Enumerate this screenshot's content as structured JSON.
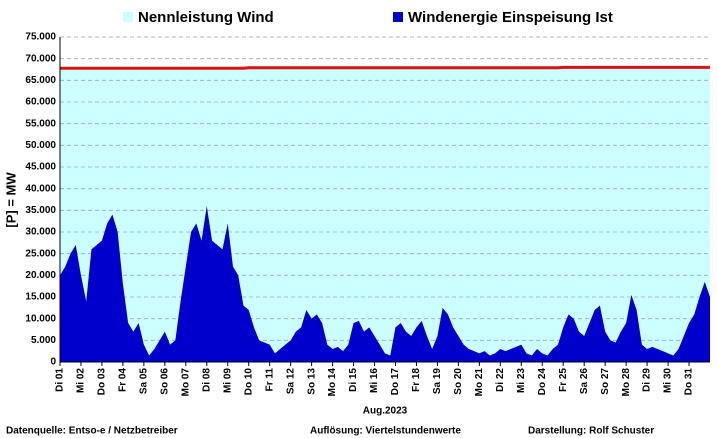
{
  "chart_data": {
    "type": "area",
    "x_label": "Aug.2023",
    "y_label": "[P] = MW",
    "footer": [
      "Datenquelle:  Entso-e  / Netzbetreiber",
      "Auflösung: Viertelstundenwerte",
      "Darstellung:  Rolf Schuster"
    ],
    "categories": [
      "Di 01",
      null,
      null,
      null,
      "Mi 02",
      null,
      null,
      null,
      "Do 03",
      null,
      null,
      null,
      "Fr 04",
      null,
      null,
      null,
      "Sa 05",
      null,
      null,
      null,
      "So 06",
      null,
      null,
      null,
      "Mo 07",
      null,
      null,
      null,
      "Di 08",
      null,
      null,
      null,
      "Mi 09",
      null,
      null,
      null,
      "Do 10",
      null,
      null,
      null,
      "Fr 11",
      null,
      null,
      null,
      "Sa 12",
      null,
      null,
      null,
      "So 13",
      null,
      null,
      null,
      "Mo 14",
      null,
      null,
      null,
      "Di 15",
      null,
      null,
      null,
      "Mi 16",
      null,
      null,
      null,
      "Do 17",
      null,
      null,
      null,
      "Fr 18",
      null,
      null,
      null,
      "Sa 19",
      null,
      null,
      null,
      "So 20",
      null,
      null,
      null,
      "Mo 21",
      null,
      null,
      null,
      "Di 22",
      null,
      null,
      null,
      "Mi 23",
      null,
      null,
      null,
      "Do 24",
      null,
      null,
      null,
      "Fr 25",
      null,
      null,
      null,
      "Sa 26",
      null,
      null,
      null,
      "So 27",
      null,
      null,
      null,
      "Mo 28",
      null,
      null,
      null,
      "Di 29",
      null,
      null,
      null,
      "Mi 30",
      null,
      null,
      null,
      "Do 31",
      null,
      null,
      null,
      null
    ],
    "series": [
      {
        "name": "Nennleistung Wind",
        "color": "#ccffff",
        "line_color": "#dd1111",
        "values": [
          67800,
          67800,
          67800,
          67800,
          67800,
          67800,
          67800,
          67800,
          67800,
          67800,
          67800,
          67800,
          67800,
          67800,
          67800,
          67800,
          67800,
          67800,
          67800,
          67800,
          67800,
          67800,
          67800,
          67800,
          67800,
          67800,
          67800,
          67800,
          67800,
          67800,
          67800,
          67800,
          67800,
          67800,
          67800,
          67800,
          67900,
          67900,
          67900,
          67900,
          67900,
          67900,
          67900,
          67900,
          67900,
          67900,
          67900,
          67900,
          67900,
          67900,
          67900,
          67900,
          67900,
          67900,
          67900,
          67900,
          67900,
          67900,
          67900,
          67900,
          67900,
          67900,
          67900,
          67900,
          67900,
          67900,
          67900,
          67900,
          67900,
          67900,
          67900,
          67900,
          67900,
          67900,
          67900,
          67900,
          67900,
          67900,
          67900,
          67900,
          67900,
          67900,
          67900,
          67900,
          67900,
          67900,
          67900,
          67900,
          67900,
          67900,
          67900,
          67900,
          67900,
          67900,
          67900,
          67900,
          68000,
          68000,
          68000,
          68000,
          68000,
          68000,
          68000,
          68000,
          68000,
          68000,
          68000,
          68000,
          68000,
          68000,
          68000,
          68000,
          68000,
          68000,
          68000,
          68000,
          68000,
          68000,
          68000,
          68000,
          68000,
          68000,
          68000,
          68000,
          68000
        ]
      },
      {
        "name": "Windenergie Einspeisung Ist",
        "color": "#0000cc",
        "values": [
          20000,
          22000,
          25000,
          27000,
          20000,
          14000,
          26000,
          27000,
          28000,
          32000,
          34000,
          30000,
          18000,
          9000,
          7000,
          9000,
          4000,
          1500,
          3000,
          5000,
          7000,
          4000,
          5000,
          14000,
          22000,
          30000,
          32000,
          28000,
          36000,
          28000,
          27000,
          26000,
          32000,
          22000,
          20000,
          13000,
          12000,
          8000,
          5000,
          4500,
          4000,
          2000,
          3000,
          4000,
          5000,
          7000,
          8000,
          12000,
          10000,
          11000,
          9000,
          4000,
          3000,
          3500,
          2500,
          4000,
          9000,
          9500,
          7000,
          8000,
          6000,
          4000,
          2000,
          1500,
          8000,
          9000,
          7000,
          6000,
          8000,
          9500,
          6000,
          3000,
          6000,
          12500,
          11000,
          8000,
          6000,
          4000,
          3000,
          2500,
          2000,
          2500,
          1500,
          2000,
          3000,
          2500,
          3000,
          3500,
          4000,
          2000,
          1500,
          3000,
          2000,
          1500,
          3000,
          4000,
          8000,
          11000,
          10000,
          7000,
          6000,
          9000,
          12000,
          13000,
          7000,
          5000,
          4500,
          7000,
          9000,
          15500,
          12000,
          4000,
          3000,
          3500,
          3000,
          2500,
          2000,
          1500,
          3000,
          6000,
          9000,
          11000,
          15000,
          18500,
          15000
        ]
      }
    ],
    "ylim": [
      0,
      75000
    ],
    "yticks": [
      {
        "value": 0,
        "label": "0"
      },
      {
        "value": 5000,
        "label": "5.000"
      },
      {
        "value": 10000,
        "label": "10.000"
      },
      {
        "value": 15000,
        "label": "15.000"
      },
      {
        "value": 20000,
        "label": "20.000"
      },
      {
        "value": 25000,
        "label": "25.000"
      },
      {
        "value": 30000,
        "label": "30.000"
      },
      {
        "value": 35000,
        "label": "35.000"
      },
      {
        "value": 40000,
        "label": "40.000"
      },
      {
        "value": 45000,
        "label": "45.000"
      },
      {
        "value": 50000,
        "label": "50.000"
      },
      {
        "value": 55000,
        "label": "55.000"
      },
      {
        "value": 60000,
        "label": "60.000"
      },
      {
        "value": 65000,
        "label": "65.000"
      },
      {
        "value": 70000,
        "label": "70.000"
      },
      {
        "value": 75000,
        "label": "75.000"
      }
    ],
    "grid": true
  }
}
